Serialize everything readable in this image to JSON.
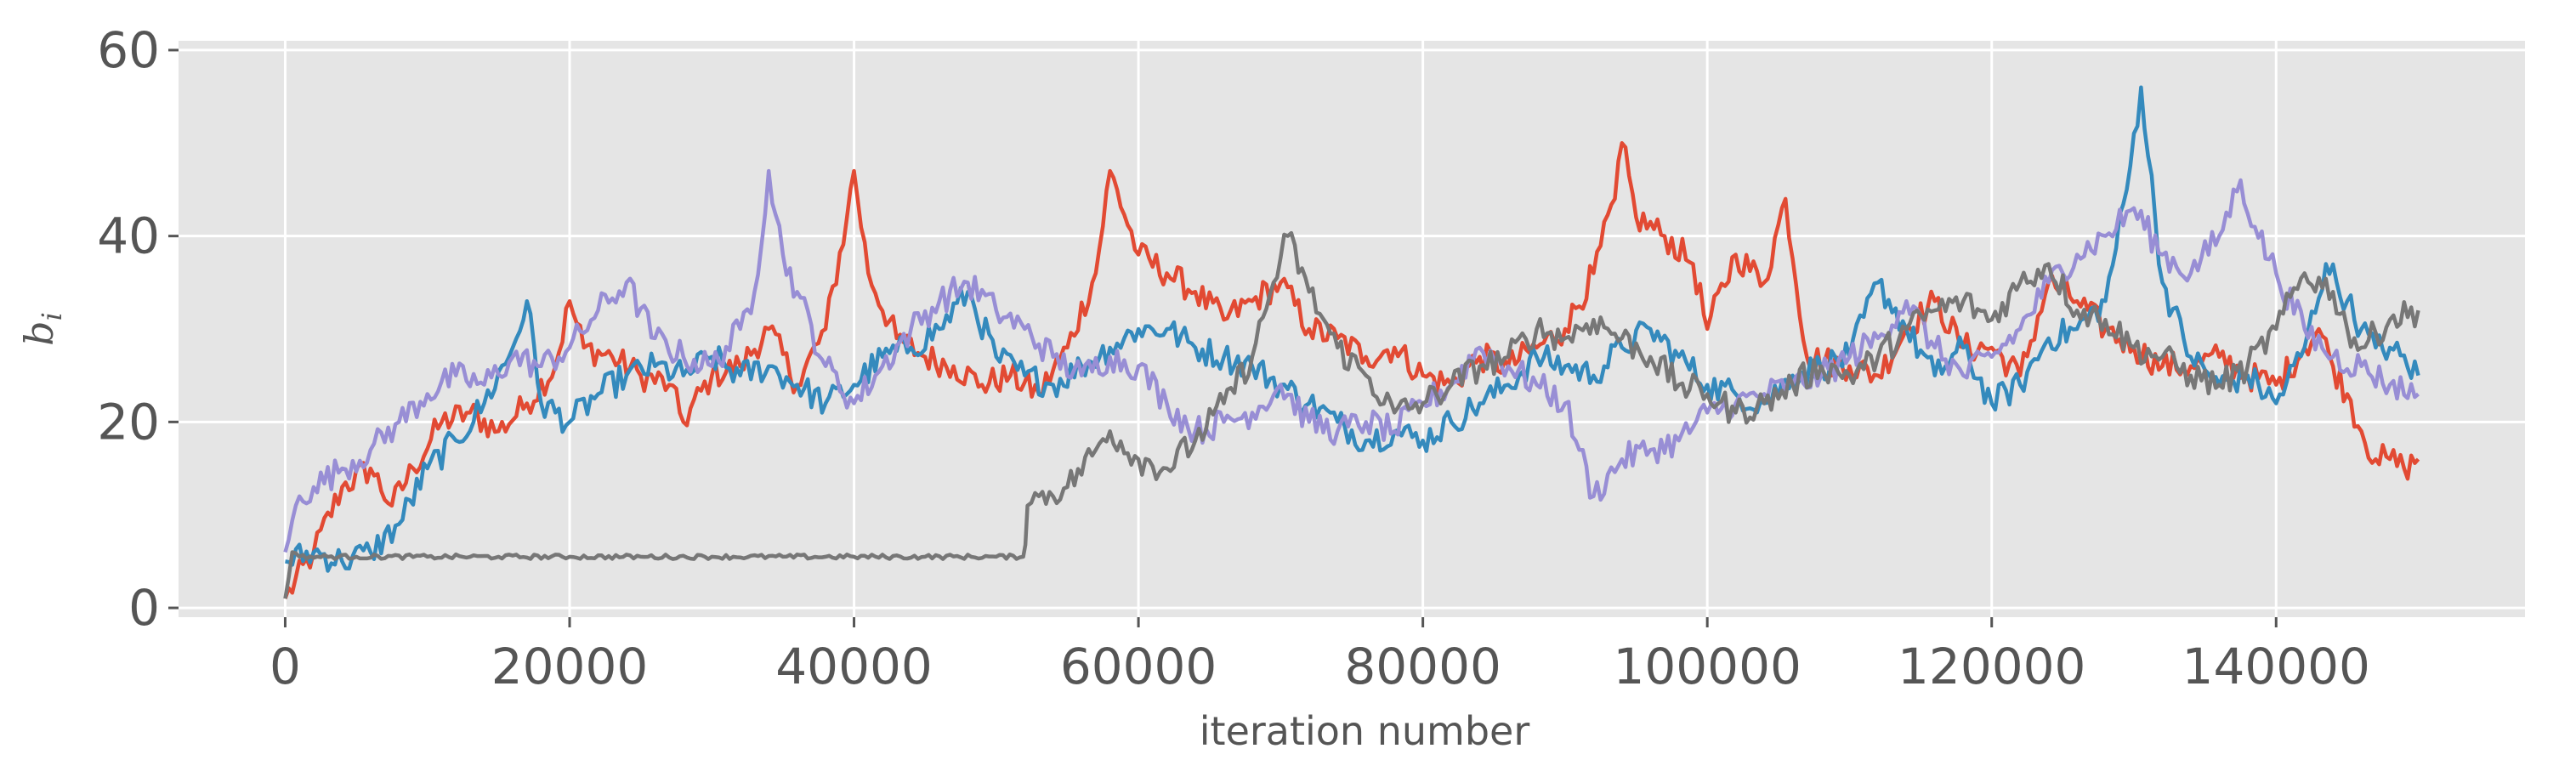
{
  "chart_data": {
    "type": "line",
    "title": "",
    "xlabel": "iteration number",
    "ylabel": {
      "base": "b",
      "subscript": "i"
    },
    "xlim": [
      -7500,
      157500
    ],
    "ylim": [
      -1,
      61
    ],
    "xticks": [
      0,
      20000,
      40000,
      60000,
      80000,
      100000,
      120000,
      140000
    ],
    "xtick_labels": [
      "0",
      "20000",
      "40000",
      "60000",
      "80000",
      "100000",
      "120000",
      "140000"
    ],
    "yticks": [
      0,
      20,
      40,
      60
    ],
    "ytick_labels": [
      "0",
      "20",
      "40",
      "60"
    ],
    "grid": true,
    "legend": "none",
    "background": "#e5e5e5",
    "series": [
      {
        "color": "#e24a33",
        "x": [
          0,
          2000,
          4000,
          6000,
          7500,
          9000,
          11000,
          13000,
          15000,
          17000,
          19000,
          20000,
          21000,
          23000,
          25000,
          27000,
          28000,
          30000,
          32000,
          34000,
          36000,
          38000,
          39500,
          40000,
          41000,
          43000,
          45000,
          47000,
          49000,
          51000,
          53000,
          55000,
          57000,
          58000,
          60000,
          62000,
          64000,
          66000,
          68000,
          70000,
          72000,
          74000,
          76000,
          78000,
          80000,
          82000,
          84000,
          86000,
          88000,
          90000,
          92000,
          93500,
          94000,
          95000,
          97000,
          99000,
          100000,
          102000,
          104000,
          105500,
          107000,
          110000,
          112000,
          114000,
          116000,
          118000,
          120000,
          122000,
          124000,
          126000,
          128000,
          130000,
          132000,
          134000,
          136000,
          138000,
          140000,
          142000,
          143000,
          144000,
          145000,
          146000,
          147000,
          148000,
          149000,
          150000
        ],
        "y": [
          1,
          6,
          13,
          15,
          11,
          15,
          20,
          21,
          19,
          22,
          26,
          33,
          28,
          27,
          25,
          24,
          20,
          25,
          26,
          30,
          24,
          30,
          42,
          47,
          36,
          29,
          27,
          26,
          24,
          25,
          23,
          28,
          36,
          47,
          38,
          36,
          34,
          31,
          33,
          35,
          30,
          29,
          27,
          28,
          25,
          24,
          27,
          26,
          28,
          30,
          36,
          44,
          50,
          42,
          40,
          37,
          30,
          38,
          35,
          44,
          27,
          26,
          25,
          30,
          33,
          28,
          28,
          25,
          35,
          33,
          30,
          28,
          26,
          26,
          27,
          25,
          24,
          28,
          30,
          26,
          23,
          19,
          16,
          16,
          15,
          16
        ]
      },
      {
        "color": "#348abd",
        "x": [
          0,
          2000,
          4000,
          6000,
          8000,
          10000,
          12000,
          14000,
          16000,
          17000,
          18000,
          20000,
          22000,
          24000,
          26000,
          28000,
          30000,
          32000,
          34000,
          36000,
          38000,
          40000,
          42000,
          44000,
          46000,
          48000,
          50000,
          52000,
          54000,
          56000,
          58000,
          60000,
          62000,
          64000,
          66000,
          68000,
          70000,
          72000,
          74000,
          76000,
          78000,
          80000,
          82000,
          84000,
          86000,
          88000,
          90000,
          92000,
          94000,
          96000,
          98000,
          100000,
          102000,
          104000,
          106000,
          108000,
          110000,
          112000,
          114000,
          116000,
          118000,
          120000,
          122000,
          124000,
          126000,
          128000,
          129500,
          130500,
          132000,
          134000,
          136000,
          138000,
          140000,
          142000,
          143500,
          145000,
          146000,
          147000,
          148000,
          150000
        ],
        "y": [
          5,
          6,
          5,
          6,
          9,
          15,
          18,
          22,
          28,
          33,
          22,
          20,
          23,
          25,
          26,
          25,
          27,
          25,
          26,
          24,
          22,
          24,
          27,
          28,
          30,
          34,
          27,
          25,
          24,
          26,
          28,
          30,
          30,
          28,
          27,
          26,
          24,
          22,
          20,
          18,
          19,
          18,
          20,
          22,
          24,
          27,
          26,
          25,
          28,
          30,
          27,
          24,
          23,
          22,
          25,
          26,
          27,
          35,
          30,
          25,
          28,
          22,
          24,
          29,
          30,
          33,
          45,
          56,
          35,
          27,
          24,
          25,
          22,
          28,
          37,
          33,
          30,
          28,
          28,
          25
        ]
      },
      {
        "color": "#988ed5",
        "x": [
          0,
          1000,
          2000,
          4000,
          6000,
          8000,
          10000,
          12000,
          14000,
          16000,
          18000,
          20000,
          22000,
          24000,
          26000,
          28000,
          30000,
          32000,
          33000,
          34000,
          35000,
          36000,
          38000,
          40000,
          42000,
          44000,
          46000,
          48000,
          50000,
          52000,
          54000,
          56000,
          58000,
          60000,
          62000,
          64000,
          66000,
          68000,
          70000,
          72000,
          74000,
          76000,
          78000,
          80000,
          82000,
          84000,
          86000,
          88000,
          90000,
          91000,
          92000,
          94000,
          96000,
          98000,
          100000,
          102000,
          104000,
          106000,
          108000,
          110000,
          112000,
          114000,
          116000,
          118000,
          120000,
          122000,
          124000,
          126000,
          128000,
          130000,
          132000,
          134000,
          136000,
          137500,
          138500,
          140000,
          142000,
          144000,
          146000,
          148000,
          150000
        ],
        "y": [
          6,
          12,
          13,
          15,
          17,
          20,
          23,
          25,
          24,
          27,
          26,
          28,
          32,
          35,
          29,
          27,
          26,
          30,
          34,
          47,
          38,
          34,
          26,
          22,
          26,
          30,
          33,
          35,
          32,
          30,
          27,
          25,
          27,
          26,
          22,
          19,
          20,
          21,
          24,
          20,
          19,
          20,
          19,
          22,
          24,
          28,
          26,
          24,
          22,
          17,
          12,
          16,
          17,
          18,
          21,
          22,
          23,
          24,
          25,
          27,
          29,
          33,
          28,
          25,
          27,
          30,
          35,
          38,
          40,
          43,
          38,
          36,
          40,
          46,
          41,
          36,
          30,
          27,
          26,
          24,
          23
        ]
      },
      {
        "color": "#777777",
        "x": [
          0,
          500,
          1000,
          5000,
          10000,
          15000,
          20000,
          25000,
          30000,
          35000,
          40000,
          45000,
          50000,
          51900,
          52200,
          53000,
          55000,
          57000,
          58000,
          60000,
          62000,
          64000,
          66000,
          68000,
          69500,
          70500,
          72000,
          74000,
          76000,
          78000,
          80000,
          82000,
          84000,
          86000,
          88000,
          90000,
          92000,
          94000,
          96000,
          98000,
          100000,
          102000,
          104000,
          106000,
          108000,
          110000,
          112000,
          114000,
          116000,
          118000,
          120000,
          122000,
          124000,
          126000,
          128000,
          130000,
          132000,
          134000,
          136000,
          138000,
          140000,
          142000,
          144000,
          145000,
          146000,
          148000,
          150000
        ],
        "y": [
          1,
          6,
          5.5,
          5.5,
          5.5,
          5.5,
          5.5,
          5.5,
          5.5,
          5.5,
          5.5,
          5.5,
          5.5,
          5.5,
          11,
          12,
          13,
          17,
          19,
          16,
          15,
          18,
          22,
          27,
          35,
          40,
          34,
          28,
          25,
          21,
          22,
          24,
          26,
          27,
          30,
          29,
          31,
          29,
          27,
          24,
          23,
          21,
          22,
          24,
          26,
          25,
          27,
          30,
          32,
          33,
          31,
          35,
          37,
          32,
          31,
          28,
          27,
          25,
          24,
          26,
          30,
          36,
          34,
          30,
          28,
          31,
          32
        ]
      }
    ]
  }
}
